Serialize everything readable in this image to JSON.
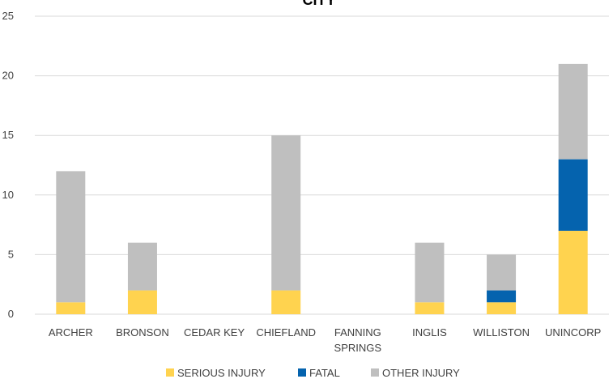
{
  "chart_data": {
    "type": "bar",
    "stacked": true,
    "title": "CITY",
    "xlabel": "",
    "ylabel": "",
    "ylim": [
      0,
      25
    ],
    "yticks": [
      0,
      5,
      10,
      15,
      20,
      25
    ],
    "grid": true,
    "legend_position": "bottom",
    "categories": [
      "ARCHER",
      "BRONSON",
      "CEDAR KEY",
      "CHIEFLAND",
      "FANNING SPRINGS",
      "INGLIS",
      "WILLISTON",
      "UNINCORP"
    ],
    "category_lines": [
      [
        "ARCHER"
      ],
      [
        "BRONSON"
      ],
      [
        "CEDAR KEY"
      ],
      [
        "CHIEFLAND"
      ],
      [
        "FANNING",
        "SPRINGS"
      ],
      [
        "INGLIS"
      ],
      [
        "WILLISTON"
      ],
      [
        "UNINCORP"
      ]
    ],
    "series": [
      {
        "name": "SERIOUS INJURY",
        "color": "#FFD34F",
        "values": [
          1,
          2,
          0,
          2,
          0,
          1,
          1,
          7
        ]
      },
      {
        "name": "FATAL",
        "color": "#0563AE",
        "values": [
          0,
          0,
          0,
          0,
          0,
          0,
          1,
          6
        ]
      },
      {
        "name": "OTHER INJURY",
        "color": "#BFBFBF",
        "values": [
          11,
          4,
          0,
          13,
          0,
          5,
          3,
          8
        ]
      }
    ]
  }
}
